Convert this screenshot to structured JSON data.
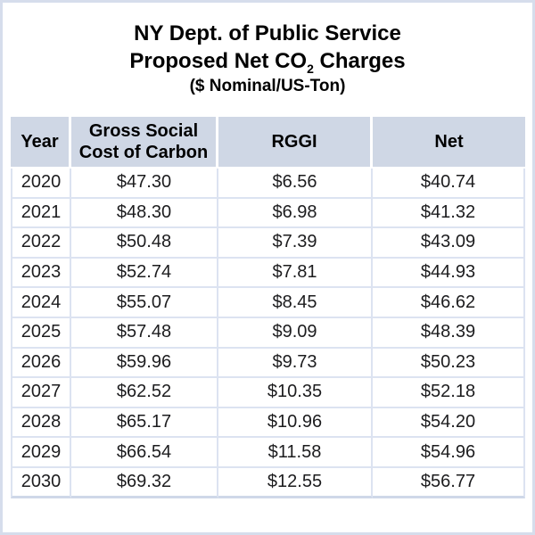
{
  "title": {
    "line1": "NY Dept. of Public Service",
    "line2_prefix": "Proposed Net CO",
    "line2_sub": "2",
    "line2_suffix": " Charges",
    "line3": "($ Nominal/US-Ton)"
  },
  "colors": {
    "header_bg": "#cfd7e5",
    "grid_line": "#dce3f1",
    "frame_border": "#d6ddec",
    "text": "#000000"
  },
  "chart_data": {
    "type": "table",
    "title": "NY Dept. of Public Service Proposed Net CO2 Charges",
    "subtitle": "($ Nominal/US-Ton)",
    "columns": [
      "Year",
      "Gross Social Cost of Carbon",
      "RGGI",
      "Net"
    ],
    "rows": [
      [
        "2020",
        "$47.30",
        "$6.56",
        "$40.74"
      ],
      [
        "2021",
        "$48.30",
        "$6.98",
        "$41.32"
      ],
      [
        "2022",
        "$50.48",
        "$7.39",
        "$43.09"
      ],
      [
        "2023",
        "$52.74",
        "$7.81",
        "$44.93"
      ],
      [
        "2024",
        "$55.07",
        "$8.45",
        "$46.62"
      ],
      [
        "2025",
        "$57.48",
        "$9.09",
        "$48.39"
      ],
      [
        "2026",
        "$59.96",
        "$9.73",
        "$50.23"
      ],
      [
        "2027",
        "$62.52",
        "$10.35",
        "$52.18"
      ],
      [
        "2028",
        "$65.17",
        "$10.96",
        "$54.20"
      ],
      [
        "2029",
        "$66.54",
        "$11.58",
        "$54.96"
      ],
      [
        "2030",
        "$69.32",
        "$12.55",
        "$56.77"
      ]
    ]
  }
}
